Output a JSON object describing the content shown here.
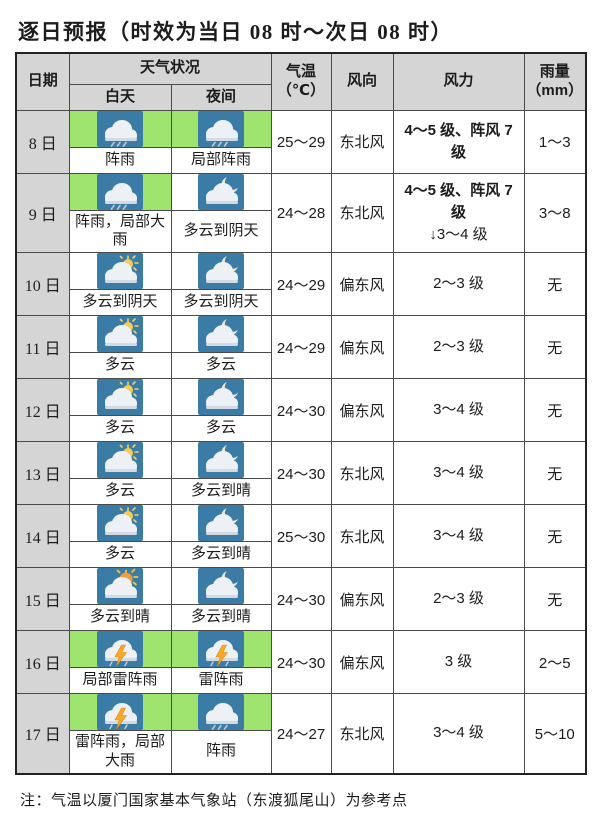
{
  "title": "逐日预报（时效为当日 08 时～次日 08 时）",
  "note": "注：气温以厦门国家基本气象站（东渡狐尾山）为参考点",
  "header": {
    "date": "日期",
    "weather_group": "天气状况",
    "day": "白天",
    "night": "夜间",
    "temp": "气温\n（℃）",
    "wind_dir": "风向",
    "wind_force": "风力",
    "rain": "雨量\n（mm）"
  },
  "colors": {
    "header_bg": "#d5d5d5",
    "rain_highlight_green": "#9fe46e",
    "icon_tile_blue": "#3a7ca6",
    "grid_line": "#4a4a4a"
  },
  "rows": [
    {
      "date": "8 日",
      "day": {
        "icon": "shower-icon",
        "highlight": true,
        "label": "阵雨"
      },
      "night": {
        "icon": "shower-icon",
        "highlight": true,
        "label": "局部阵雨"
      },
      "temp": "25～29",
      "wind_dir": "东北风",
      "wind_force": [
        {
          "text": "4～5 级、阵风 7 级",
          "bold": true
        }
      ],
      "rain": "1～3"
    },
    {
      "date": "9 日",
      "day": {
        "icon": "shower-icon",
        "highlight": true,
        "label": "阵雨，局部大雨"
      },
      "night": {
        "icon": "cloud-moon-icon",
        "highlight": false,
        "label": "多云到阴天"
      },
      "temp": "24～28",
      "wind_dir": "东北风",
      "wind_force": [
        {
          "text": "4～5 级、阵风 7 级",
          "bold": true
        },
        {
          "text": "↓3～4 级",
          "bold": false
        }
      ],
      "rain": "3～8"
    },
    {
      "date": "10 日",
      "day": {
        "icon": "cloud-sun-icon",
        "highlight": false,
        "label": "多云到阴天"
      },
      "night": {
        "icon": "cloud-moon-icon",
        "highlight": false,
        "label": "多云到阴天"
      },
      "temp": "24～29",
      "wind_dir": "偏东风",
      "wind_force": [
        {
          "text": "2～3 级",
          "bold": false
        }
      ],
      "rain": "无"
    },
    {
      "date": "11 日",
      "day": {
        "icon": "cloud-sun-icon",
        "highlight": false,
        "label": "多云"
      },
      "night": {
        "icon": "cloud-moon-icon",
        "highlight": false,
        "label": "多云"
      },
      "temp": "24～29",
      "wind_dir": "偏东风",
      "wind_force": [
        {
          "text": "2～3 级",
          "bold": false
        }
      ],
      "rain": "无"
    },
    {
      "date": "12 日",
      "day": {
        "icon": "cloud-sun-icon",
        "highlight": false,
        "label": "多云"
      },
      "night": {
        "icon": "cloud-moon-icon",
        "highlight": false,
        "label": "多云"
      },
      "temp": "24～30",
      "wind_dir": "偏东风",
      "wind_force": [
        {
          "text": "3～4 级",
          "bold": false
        }
      ],
      "rain": "无"
    },
    {
      "date": "13 日",
      "day": {
        "icon": "cloud-sun-icon",
        "highlight": false,
        "label": "多云"
      },
      "night": {
        "icon": "cloud-moon-icon",
        "highlight": false,
        "label": "多云到晴"
      },
      "temp": "24～30",
      "wind_dir": "东北风",
      "wind_force": [
        {
          "text": "3～4 级",
          "bold": false
        }
      ],
      "rain": "无"
    },
    {
      "date": "14 日",
      "day": {
        "icon": "cloud-sun-icon",
        "highlight": false,
        "label": "多云"
      },
      "night": {
        "icon": "cloud-moon-icon",
        "highlight": false,
        "label": "多云到晴"
      },
      "temp": "25～30",
      "wind_dir": "东北风",
      "wind_force": [
        {
          "text": "3～4 级",
          "bold": false
        }
      ],
      "rain": "无"
    },
    {
      "date": "15 日",
      "day": {
        "icon": "cloud-sun-bright-icon",
        "highlight": false,
        "label": "多云到晴"
      },
      "night": {
        "icon": "cloud-moon-icon",
        "highlight": false,
        "label": "多云到晴"
      },
      "temp": "24～30",
      "wind_dir": "偏东风",
      "wind_force": [
        {
          "text": "2～3 级",
          "bold": false
        }
      ],
      "rain": "无"
    },
    {
      "date": "16 日",
      "day": {
        "icon": "thunderstorm-icon",
        "highlight": true,
        "label": "局部雷阵雨"
      },
      "night": {
        "icon": "thunderstorm-icon",
        "highlight": true,
        "label": "雷阵雨"
      },
      "temp": "24～30",
      "wind_dir": "偏东风",
      "wind_force": [
        {
          "text": "3 级",
          "bold": false
        }
      ],
      "rain": "2～5"
    },
    {
      "date": "17 日",
      "day": {
        "icon": "thunderstorm-icon",
        "highlight": true,
        "label": "雷阵雨，局部大雨"
      },
      "night": {
        "icon": "shower-icon",
        "highlight": true,
        "label": "阵雨"
      },
      "temp": "24～27",
      "wind_dir": "东北风",
      "wind_force": [
        {
          "text": "3～4 级",
          "bold": false
        }
      ],
      "rain": "5～10"
    }
  ]
}
